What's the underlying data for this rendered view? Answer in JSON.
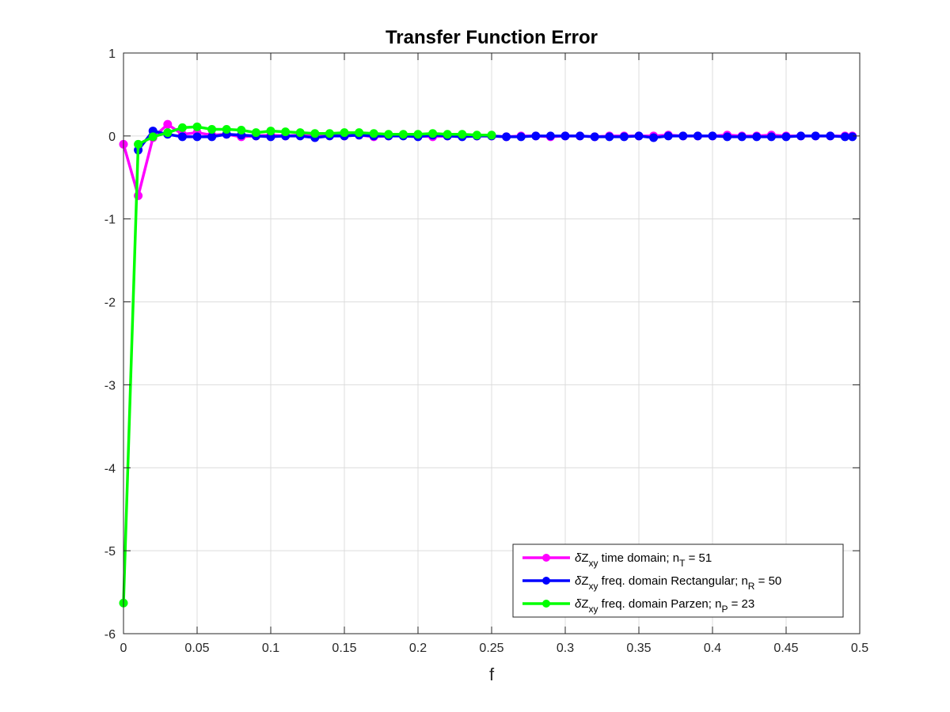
{
  "chart_data": {
    "type": "line",
    "title": "Transfer Function Error",
    "xlabel": "f",
    "ylabel": "",
    "xlim": [
      0,
      0.5
    ],
    "ylim": [
      -6,
      1
    ],
    "xticks": [
      0,
      0.05,
      0.1,
      0.15,
      0.2,
      0.25,
      0.3,
      0.35,
      0.4,
      0.45,
      0.5
    ],
    "xtick_labels": [
      "0",
      "0.05",
      "0.1",
      "0.15",
      "0.2",
      "0.25",
      "0.3",
      "0.35",
      "0.4",
      "0.45",
      "0.5"
    ],
    "yticks": [
      1,
      0,
      -1,
      -2,
      -3,
      -4,
      -5,
      -6
    ],
    "ytick_labels": [
      "1",
      "0",
      "-1",
      "-2",
      "-3",
      "-4",
      "-5",
      "-6"
    ],
    "grid": true,
    "legend_position": "bottom-right",
    "series": [
      {
        "name": "δZxy time domain; nT = 51",
        "legend": {
          "delta": "δ",
          "main": "Z",
          "sub": "xy",
          "desc": " time domain; n",
          "nsub": "T",
          "tail": " = 51"
        },
        "color": "#ff00ff",
        "x": [
          0,
          0.01,
          0.02,
          0.03,
          0.04,
          0.05,
          0.06,
          0.07,
          0.08,
          0.09,
          0.1,
          0.11,
          0.12,
          0.13,
          0.14,
          0.15,
          0.16,
          0.17,
          0.18,
          0.19,
          0.2,
          0.21,
          0.22,
          0.23,
          0.24,
          0.25,
          0.26,
          0.27,
          0.28,
          0.29,
          0.3,
          0.31,
          0.32,
          0.33,
          0.34,
          0.35,
          0.36,
          0.37,
          0.38,
          0.39,
          0.4,
          0.41,
          0.42,
          0.43,
          0.44,
          0.45,
          0.46,
          0.47,
          0.48,
          0.49,
          0.495
        ],
        "y": [
          -0.1,
          -0.72,
          -0.02,
          0.14,
          0.02,
          0.04,
          0.01,
          0.02,
          -0.01,
          0.0,
          0.01,
          0.0,
          0.01,
          0.0,
          0.01,
          0.0,
          0.01,
          -0.01,
          0.0,
          0.01,
          0.0,
          -0.01,
          0.0,
          0.01,
          0.0,
          0.0,
          -0.01,
          0.0,
          0.0,
          -0.01,
          0.0,
          0.0,
          -0.01,
          0.0,
          0.0,
          0.0,
          0.0,
          0.01,
          0.0,
          0.0,
          0.0,
          0.01,
          0.0,
          0.0,
          0.01,
          0.0,
          0.0,
          0.0,
          0.0,
          0.0,
          0.0
        ]
      },
      {
        "name": "δZxy freq. domain Rectangular; nR = 50",
        "legend": {
          "delta": "δ",
          "main": "Z",
          "sub": "xy",
          "desc": " freq. domain Rectangular; n",
          "nsub": "R",
          "tail": " = 50"
        },
        "color": "#0000ff",
        "x": [
          0.01,
          0.02,
          0.03,
          0.04,
          0.05,
          0.06,
          0.07,
          0.08,
          0.09,
          0.1,
          0.11,
          0.12,
          0.13,
          0.14,
          0.15,
          0.16,
          0.17,
          0.18,
          0.19,
          0.2,
          0.21,
          0.22,
          0.23,
          0.24,
          0.25,
          0.26,
          0.27,
          0.28,
          0.29,
          0.3,
          0.31,
          0.32,
          0.33,
          0.34,
          0.35,
          0.36,
          0.37,
          0.38,
          0.39,
          0.4,
          0.41,
          0.42,
          0.43,
          0.44,
          0.45,
          0.46,
          0.47,
          0.48,
          0.49,
          0.495
        ],
        "y": [
          -0.17,
          0.06,
          0.02,
          -0.01,
          -0.01,
          -0.01,
          0.02,
          0.01,
          0.0,
          -0.01,
          0.0,
          0.0,
          -0.02,
          0.0,
          0.0,
          0.01,
          0.0,
          0.0,
          0.0,
          -0.01,
          0.01,
          0.0,
          -0.01,
          0.0,
          0.0,
          -0.01,
          -0.01,
          0.0,
          0.0,
          0.0,
          0.0,
          -0.01,
          -0.01,
          -0.01,
          0.0,
          -0.02,
          0.0,
          0.0,
          0.0,
          0.0,
          -0.01,
          -0.01,
          -0.01,
          -0.01,
          -0.01,
          0.0,
          0.0,
          0.0,
          -0.01,
          -0.01
        ]
      },
      {
        "name": "δZxy freq. domain Parzen; nP = 23",
        "legend": {
          "delta": "δ",
          "main": "Z",
          "sub": "xy",
          "desc": " freq. domain Parzen; n",
          "nsub": "P",
          "tail": " = 23"
        },
        "color": "#00ff00",
        "x": [
          0,
          0.01,
          0.02,
          0.03,
          0.04,
          0.05,
          0.06,
          0.07,
          0.08,
          0.09,
          0.1,
          0.11,
          0.12,
          0.13,
          0.14,
          0.15,
          0.16,
          0.17,
          0.18,
          0.19,
          0.2,
          0.21,
          0.22,
          0.23,
          0.24,
          0.25
        ],
        "y": [
          -5.63,
          -0.1,
          -0.01,
          0.04,
          0.1,
          0.11,
          0.08,
          0.08,
          0.07,
          0.04,
          0.06,
          0.05,
          0.04,
          0.03,
          0.03,
          0.04,
          0.04,
          0.03,
          0.02,
          0.02,
          0.02,
          0.03,
          0.02,
          0.02,
          0.01,
          0.01
        ]
      }
    ]
  }
}
